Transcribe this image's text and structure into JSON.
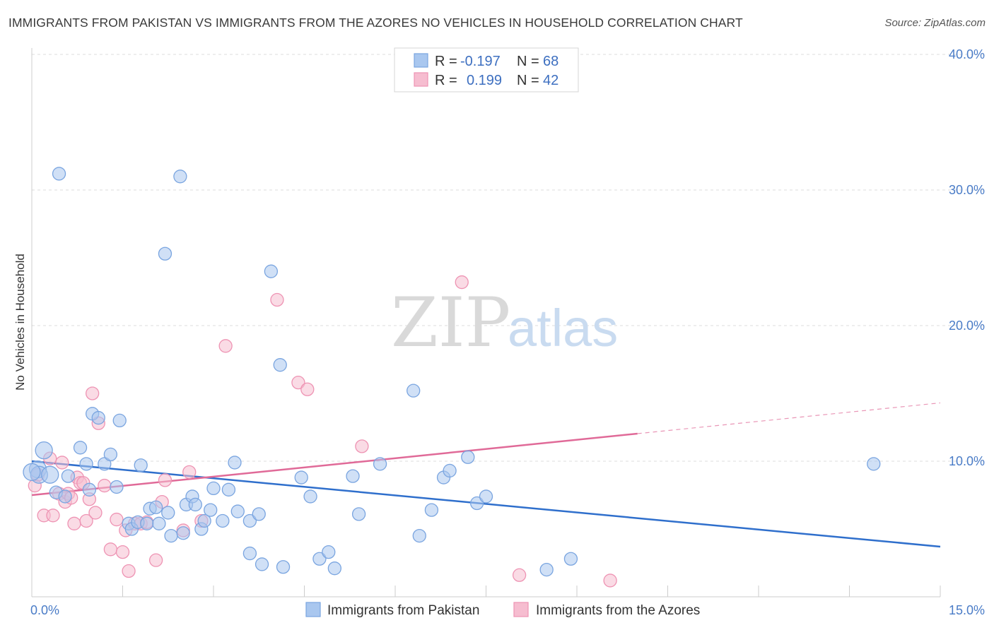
{
  "header": {
    "title": "IMMIGRANTS FROM PAKISTAN VS IMMIGRANTS FROM THE AZORES NO VEHICLES IN HOUSEHOLD CORRELATION CHART",
    "source": "Source: ZipAtlas.com"
  },
  "watermark": {
    "zip": "ZIP",
    "atlas": "atlas"
  },
  "legend": {
    "rows": [
      {
        "r_label": "R =",
        "r_value": "-0.197",
        "n_label": "N =",
        "n_value": "68"
      },
      {
        "r_label": "R =",
        "r_value": "0.199",
        "n_label": "N =",
        "n_value": "42"
      }
    ]
  },
  "colors": {
    "pakistan_fill": "#a9c7ef",
    "pakistan_stroke": "#7aa5e0",
    "pakistan_line": "#2f6fcc",
    "azores_fill": "#f6bdd0",
    "azores_stroke": "#ee93b3",
    "azores_line": "#e06a98"
  },
  "chart_data": {
    "type": "scatter",
    "xlabel": "",
    "ylabel": "No Vehicles in Household",
    "xlim": [
      0,
      15
    ],
    "ylim": [
      0,
      40
    ],
    "x_tick_labels": [
      "0.0%",
      "15.0%"
    ],
    "y_ticks": [
      10,
      20,
      30,
      40
    ],
    "y_tick_labels": [
      "10.0%",
      "20.0%",
      "30.0%",
      "40.0%"
    ],
    "grid": true,
    "legend_position": "top-center",
    "series": [
      {
        "name": "Immigrants from Pakistan",
        "points": [
          [
            0.1,
            9.4
          ],
          [
            0.12,
            9.0
          ],
          [
            0.2,
            10.8
          ],
          [
            0.3,
            9.0
          ],
          [
            0.45,
            31.2
          ],
          [
            0.4,
            7.7
          ],
          [
            0.55,
            7.4
          ],
          [
            0.6,
            8.9
          ],
          [
            0.8,
            11.0
          ],
          [
            0.9,
            9.8
          ],
          [
            0.95,
            7.9
          ],
          [
            1.0,
            13.5
          ],
          [
            1.1,
            13.2
          ],
          [
            1.2,
            9.8
          ],
          [
            1.3,
            10.5
          ],
          [
            1.4,
            8.1
          ],
          [
            1.45,
            13.0
          ],
          [
            1.6,
            5.4
          ],
          [
            1.65,
            5.0
          ],
          [
            1.75,
            5.5
          ],
          [
            1.8,
            9.7
          ],
          [
            1.9,
            5.4
          ],
          [
            1.95,
            6.5
          ],
          [
            2.05,
            6.6
          ],
          [
            2.1,
            5.4
          ],
          [
            2.2,
            25.3
          ],
          [
            2.25,
            6.2
          ],
          [
            2.3,
            4.5
          ],
          [
            2.45,
            31.0
          ],
          [
            2.5,
            4.7
          ],
          [
            2.55,
            6.8
          ],
          [
            2.65,
            7.4
          ],
          [
            2.7,
            6.8
          ],
          [
            2.8,
            5.0
          ],
          [
            2.85,
            5.6
          ],
          [
            2.95,
            6.4
          ],
          [
            3.0,
            8.0
          ],
          [
            3.15,
            5.6
          ],
          [
            3.25,
            7.9
          ],
          [
            3.35,
            9.9
          ],
          [
            3.4,
            6.3
          ],
          [
            3.6,
            5.6
          ],
          [
            3.75,
            6.1
          ],
          [
            3.8,
            2.4
          ],
          [
            3.95,
            24.0
          ],
          [
            3.6,
            3.2
          ],
          [
            4.1,
            17.1
          ],
          [
            4.15,
            2.2
          ],
          [
            4.45,
            8.8
          ],
          [
            4.6,
            7.4
          ],
          [
            4.75,
            2.8
          ],
          [
            4.9,
            3.3
          ],
          [
            5.0,
            2.1
          ],
          [
            5.3,
            8.9
          ],
          [
            5.4,
            6.1
          ],
          [
            5.75,
            9.8
          ],
          [
            6.3,
            15.2
          ],
          [
            6.4,
            4.5
          ],
          [
            6.6,
            6.4
          ],
          [
            6.8,
            8.8
          ],
          [
            6.9,
            9.3
          ],
          [
            7.2,
            10.3
          ],
          [
            7.35,
            6.9
          ],
          [
            7.5,
            7.4
          ],
          [
            8.5,
            2.0
          ],
          [
            8.9,
            2.8
          ],
          [
            13.9,
            9.8
          ],
          [
            0.0,
            9.2
          ]
        ]
      },
      {
        "name": "Immigrants from the Azores",
        "points": [
          [
            0.05,
            8.2
          ],
          [
            0.1,
            9.0
          ],
          [
            0.2,
            6.0
          ],
          [
            0.3,
            10.2
          ],
          [
            0.35,
            6.0
          ],
          [
            0.45,
            7.6
          ],
          [
            0.5,
            9.9
          ],
          [
            0.55,
            7.0
          ],
          [
            0.6,
            7.6
          ],
          [
            0.65,
            7.3
          ],
          [
            0.7,
            5.4
          ],
          [
            0.75,
            8.8
          ],
          [
            0.8,
            8.4
          ],
          [
            0.85,
            8.4
          ],
          [
            0.9,
            5.6
          ],
          [
            0.95,
            7.2
          ],
          [
            1.0,
            15.0
          ],
          [
            1.05,
            6.2
          ],
          [
            1.1,
            12.8
          ],
          [
            1.2,
            8.2
          ],
          [
            1.3,
            3.5
          ],
          [
            1.4,
            5.7
          ],
          [
            1.5,
            3.3
          ],
          [
            1.55,
            4.9
          ],
          [
            1.6,
            1.9
          ],
          [
            1.7,
            5.4
          ],
          [
            1.8,
            5.4
          ],
          [
            1.9,
            5.5
          ],
          [
            2.05,
            2.7
          ],
          [
            2.15,
            7.0
          ],
          [
            2.2,
            8.6
          ],
          [
            2.5,
            4.9
          ],
          [
            2.6,
            9.2
          ],
          [
            2.8,
            5.6
          ],
          [
            3.2,
            18.5
          ],
          [
            4.05,
            21.9
          ],
          [
            4.4,
            15.8
          ],
          [
            4.55,
            15.3
          ],
          [
            5.45,
            11.1
          ],
          [
            7.1,
            23.2
          ],
          [
            8.05,
            1.6
          ],
          [
            9.55,
            1.2
          ]
        ]
      }
    ],
    "trend_lines": [
      {
        "series": "Immigrants from Pakistan",
        "x": [
          0,
          15
        ],
        "y": [
          10.0,
          3.7
        ],
        "dashed_from": null
      },
      {
        "series": "Immigrants from the Azores",
        "x": [
          0,
          15
        ],
        "y": [
          7.5,
          14.3
        ],
        "dashed_from": 10.0
      }
    ]
  },
  "bottom_legend": {
    "items": [
      {
        "label": "Immigrants from Pakistan"
      },
      {
        "label": "Immigrants from the Azores"
      }
    ]
  }
}
